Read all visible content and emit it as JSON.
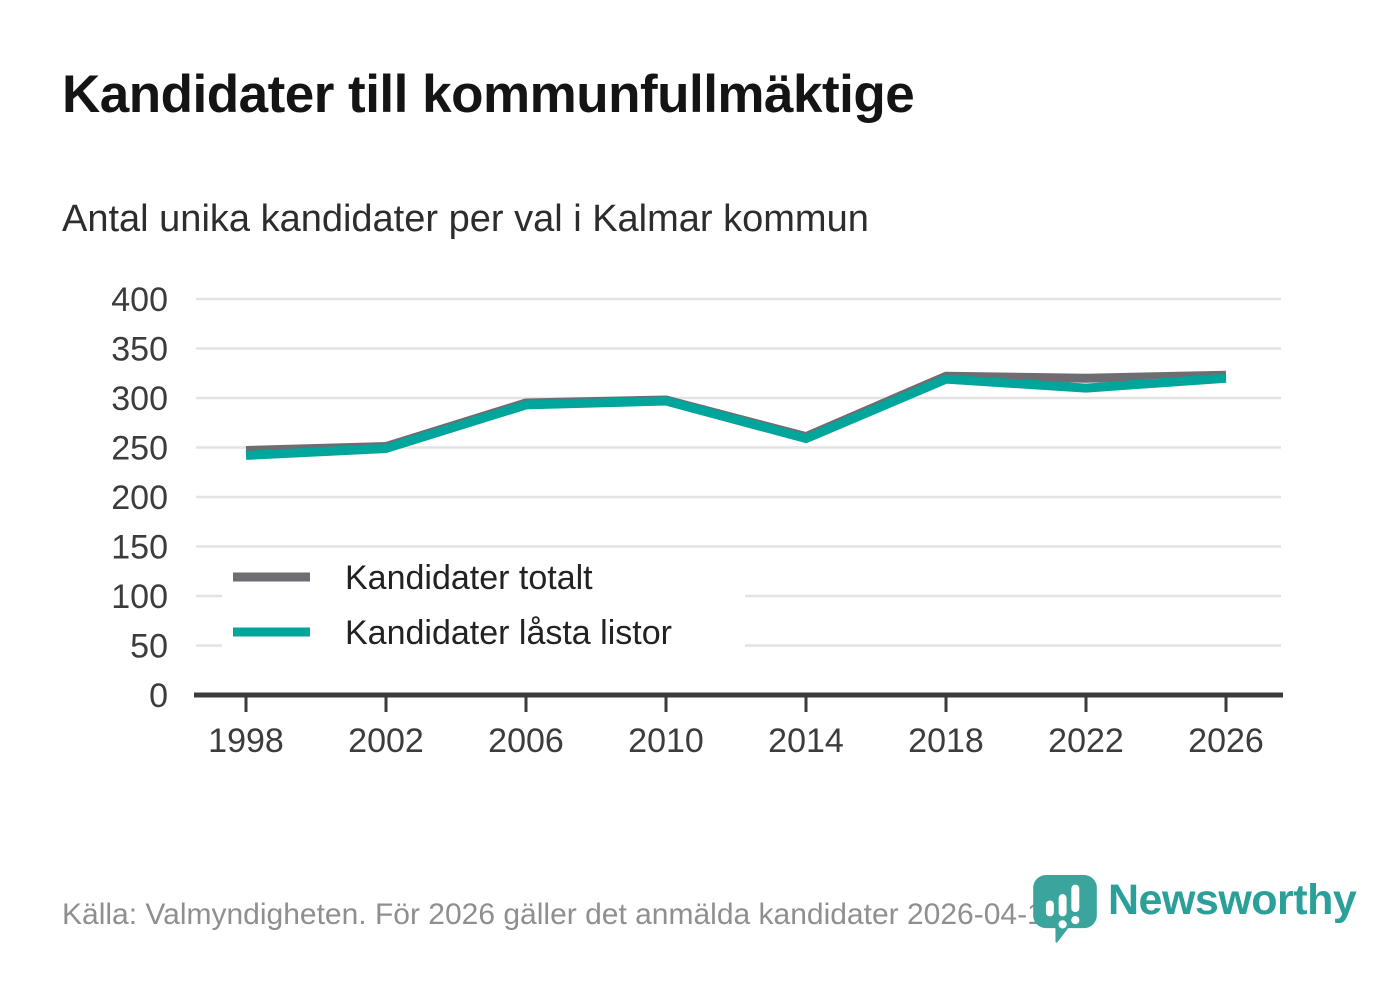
{
  "header": {
    "title": "Kandidater till kommunfullmäktige",
    "subtitle": "Antal unika kandidater per val i Kalmar kommun"
  },
  "footer": {
    "source": "Källa: Valmyndigheten. För 2026 gäller det anmälda kandidater 2026-04-10.",
    "logo_text": "Newsworthy"
  },
  "colors": {
    "title": "#141414",
    "subtitle": "#2d2d2d",
    "axis": "#3b3b3b",
    "grid": "#e3e3e3",
    "tick_label": "#3c3c3c",
    "legend_label": "#222222",
    "source_text": "#8f8f8f",
    "series_total": "#6e6e72",
    "series_locked": "#00a59b",
    "logo_teal": "#3aa49d",
    "logo_text_teal": "#2ba09a"
  },
  "chart_data": {
    "type": "line",
    "title": "Kandidater till kommunfullmäktige",
    "subtitle": "Antal unika kandidater per val i Kalmar kommun",
    "x": [
      "1998",
      "2002",
      "2006",
      "2010",
      "2014",
      "2018",
      "2022",
      "2026"
    ],
    "series": [
      {
        "name": "Kandidater totalt",
        "color": "#6e6e72",
        "values": [
          247,
          251,
          295,
          298,
          261,
          322,
          320,
          323
        ]
      },
      {
        "name": "Kandidater låsta listor",
        "color": "#00a59b",
        "values": [
          242,
          249,
          293,
          297,
          259,
          319,
          310,
          320
        ]
      }
    ],
    "ylim": [
      0,
      400
    ],
    "y_ticks": [
      0,
      50,
      100,
      150,
      200,
      250,
      300,
      350,
      400
    ],
    "grid": true,
    "legend_position": "inside-left",
    "xlabel": "",
    "ylabel": ""
  }
}
